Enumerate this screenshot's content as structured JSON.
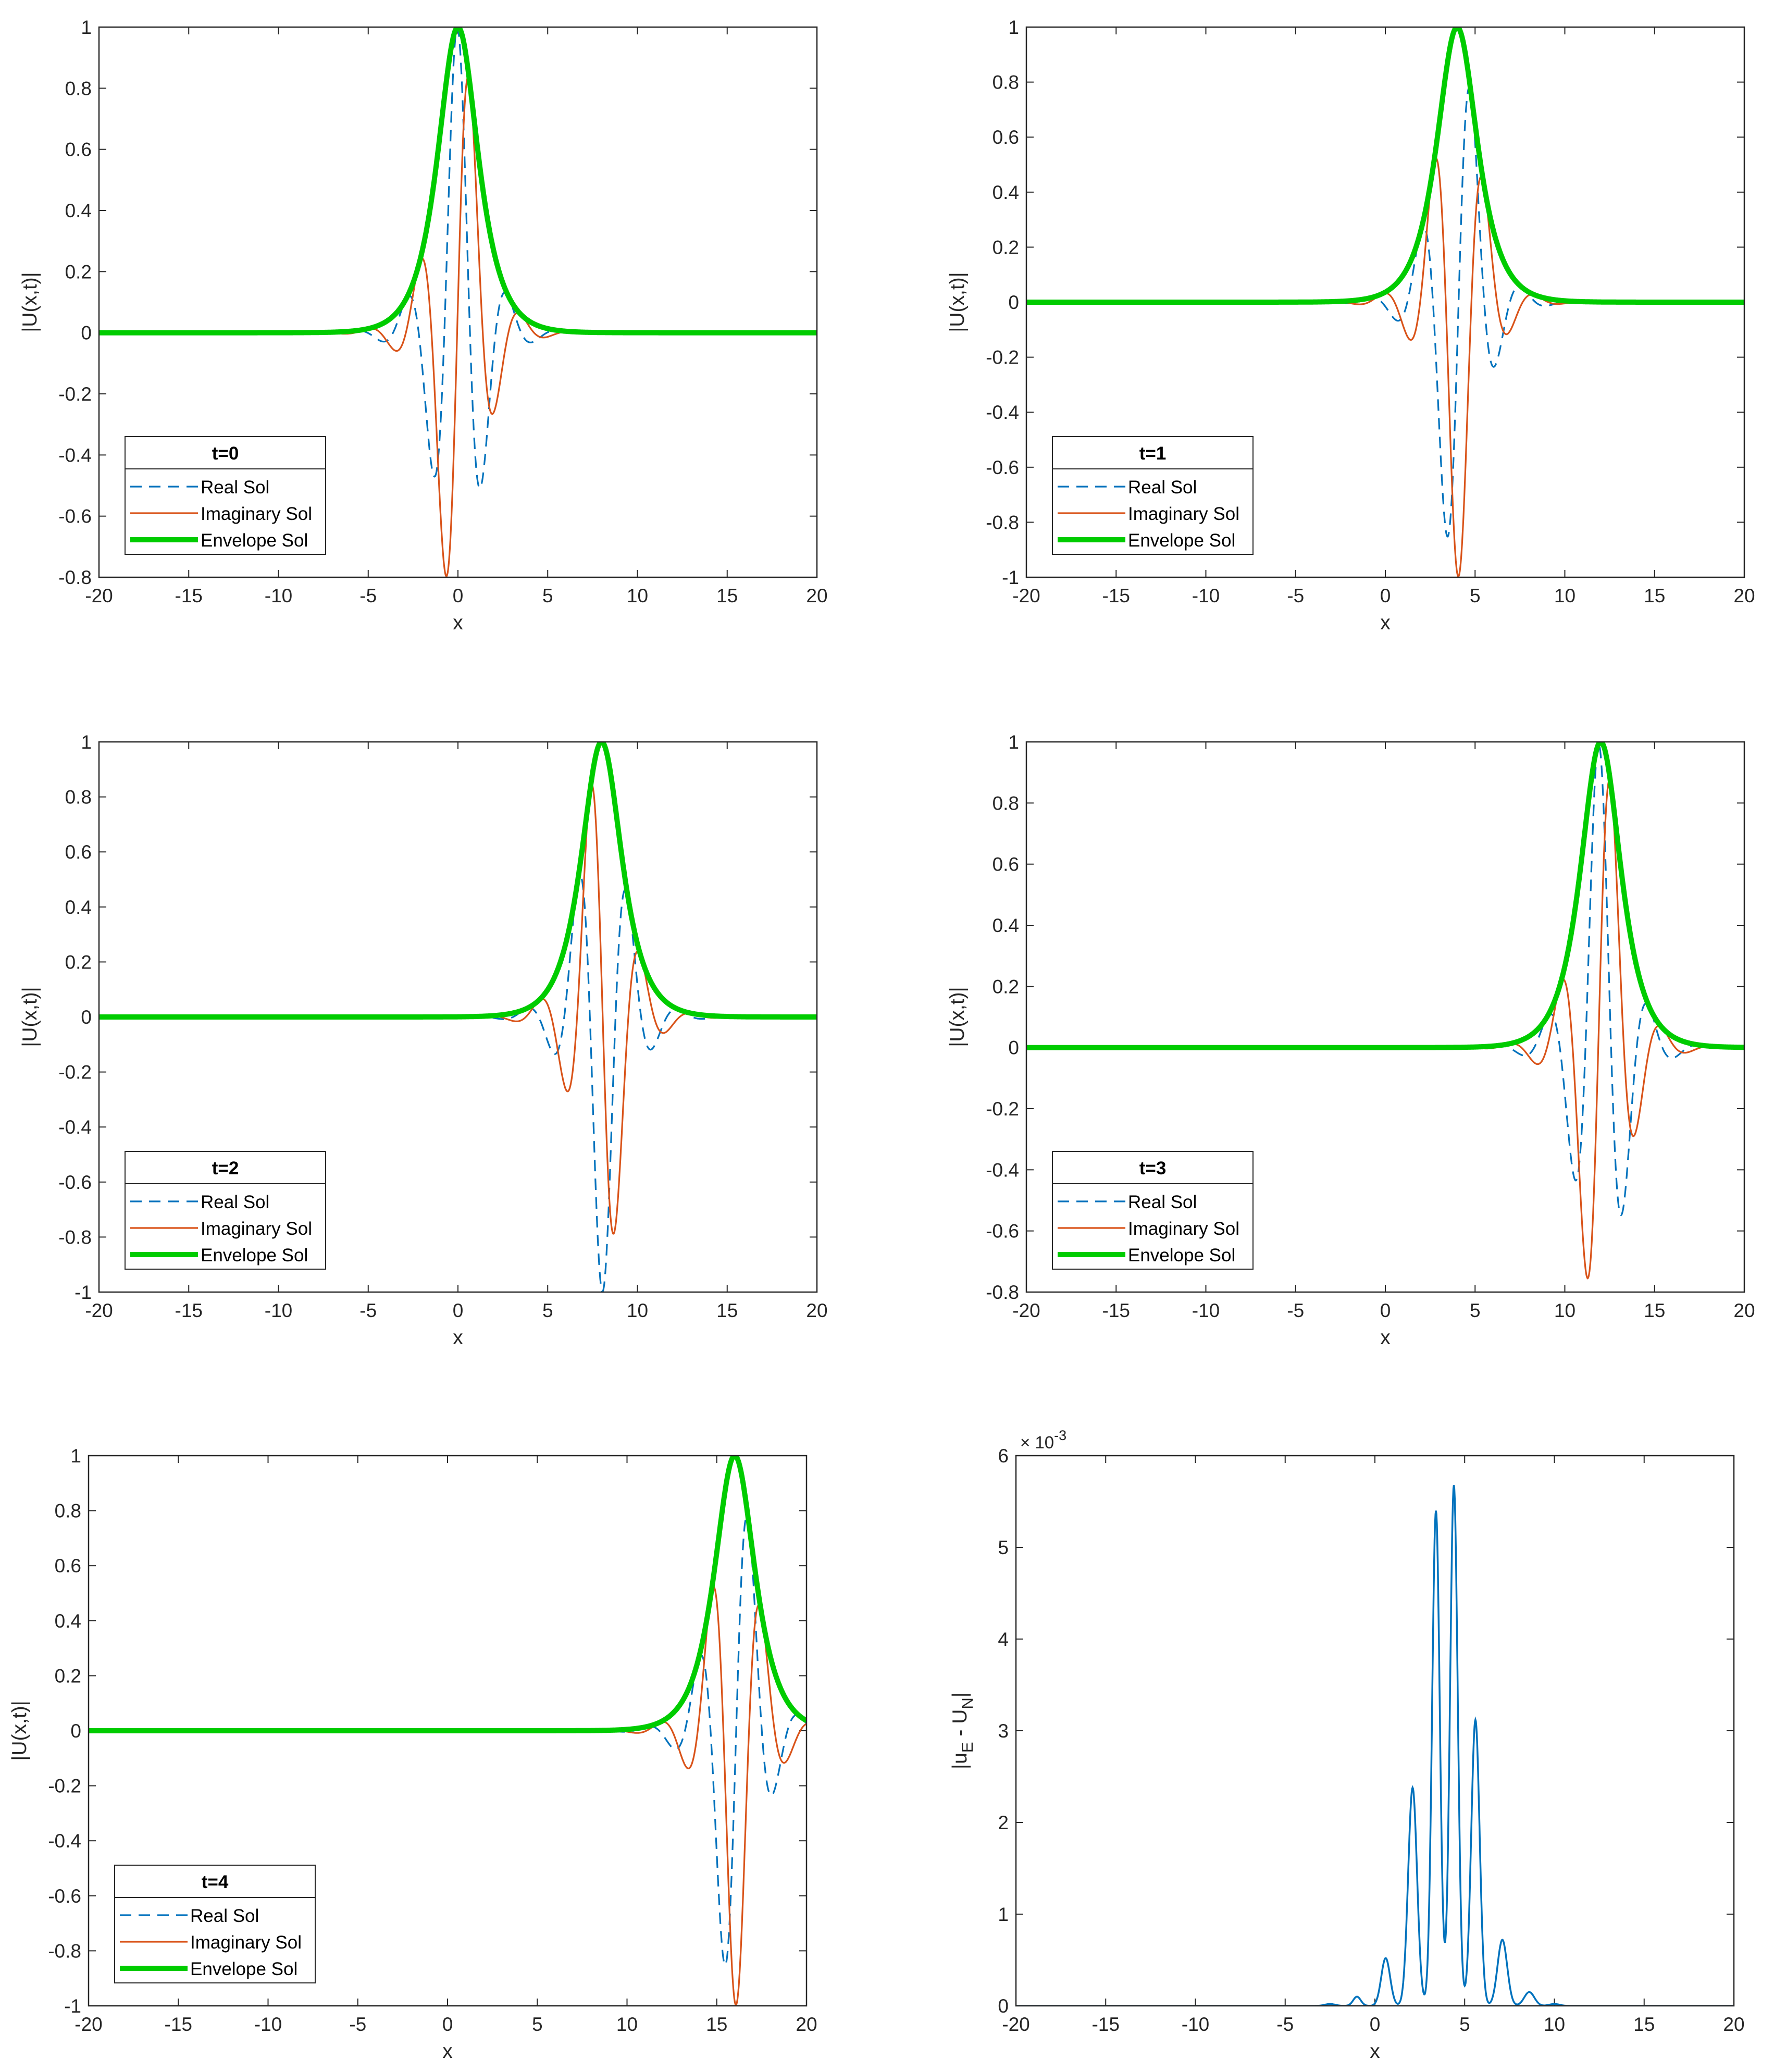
{
  "figure": {
    "description_free": true
  },
  "colors": {
    "real": "#0072BD",
    "imaginary": "#D95319",
    "envelope": "#00CC00",
    "error": "#0072BD",
    "axis": "#262626"
  },
  "chart_data": [
    {
      "type": "line",
      "id": "t0",
      "xlabel": "x",
      "ylabel": "|U(x,t)|",
      "xlim": [
        -20,
        20
      ],
      "ylim": [
        -0.8,
        1
      ],
      "xticks": [
        -20,
        -15,
        -10,
        -5,
        0,
        5,
        10,
        15,
        20
      ],
      "yticks": [
        -0.8,
        -0.6,
        -0.4,
        -0.2,
        0,
        0.2,
        0.4,
        0.6,
        0.8,
        1
      ],
      "legend": {
        "title": "t=0",
        "placement": "bottom-left",
        "entries": [
          "Real Sol",
          "Imaginary Sol",
          "Envelope Sol"
        ]
      },
      "model": {
        "center": 0,
        "width": 1,
        "wavenumber": 2.2,
        "phase": 0.1
      },
      "series": [
        {
          "name": "Real Sol",
          "style": "dashed"
        },
        {
          "name": "Imaginary Sol",
          "style": "solid"
        },
        {
          "name": "Envelope Sol",
          "style": "thick"
        }
      ]
    },
    {
      "type": "line",
      "id": "t1",
      "xlabel": "x",
      "ylabel": "|U(x,t)|",
      "xlim": [
        -20,
        20
      ],
      "ylim": [
        -1,
        1
      ],
      "xticks": [
        -20,
        -15,
        -10,
        -5,
        0,
        5,
        10,
        15,
        20
      ],
      "yticks": [
        -1,
        -0.8,
        -0.6,
        -0.4,
        -0.2,
        0,
        0.2,
        0.4,
        0.6,
        0.8,
        1
      ],
      "legend": {
        "title": "t=1",
        "placement": "bottom-left",
        "entries": [
          "Real Sol",
          "Imaginary Sol",
          "Envelope Sol"
        ]
      },
      "model": {
        "center": 4,
        "width": 1,
        "wavenumber": 2.2,
        "phase": -1.75
      },
      "series": [
        {
          "name": "Real Sol",
          "style": "dashed"
        },
        {
          "name": "Imaginary Sol",
          "style": "solid"
        },
        {
          "name": "Envelope Sol",
          "style": "thick"
        }
      ]
    },
    {
      "type": "line",
      "id": "t2",
      "xlabel": "x",
      "ylabel": "|U(x,t)|",
      "xlim": [
        -20,
        20
      ],
      "ylim": [
        -1,
        1
      ],
      "xticks": [
        -20,
        -15,
        -10,
        -5,
        0,
        5,
        10,
        15,
        20
      ],
      "yticks": [
        -1,
        -0.8,
        -0.6,
        -0.4,
        -0.2,
        0,
        0.2,
        0.4,
        0.6,
        0.8,
        1
      ],
      "legend": {
        "title": "t=2",
        "placement": "bottom-left",
        "entries": [
          "Real Sol",
          "Imaginary Sol",
          "Envelope Sol"
        ]
      },
      "model": {
        "center": 8,
        "width": 1,
        "wavenumber": 2.2,
        "phase": 3.0
      },
      "series": [
        {
          "name": "Real Sol",
          "style": "dashed"
        },
        {
          "name": "Imaginary Sol",
          "style": "solid"
        },
        {
          "name": "Envelope Sol",
          "style": "thick"
        }
      ]
    },
    {
      "type": "line",
      "id": "t3",
      "xlabel": "x",
      "ylabel": "|U(x,t)|",
      "xlim": [
        -20,
        20
      ],
      "ylim": [
        -0.8,
        1
      ],
      "xticks": [
        -20,
        -15,
        -10,
        -5,
        0,
        5,
        10,
        15,
        20
      ],
      "yticks": [
        -0.8,
        -0.6,
        -0.4,
        -0.2,
        0,
        0.2,
        0.4,
        0.6,
        0.8,
        1
      ],
      "legend": {
        "title": "t=3",
        "placement": "bottom-left",
        "entries": [
          "Real Sol",
          "Imaginary Sol",
          "Envelope Sol"
        ]
      },
      "model": {
        "center": 12,
        "width": 1,
        "wavenumber": 2.2,
        "phase": 0.3
      },
      "series": [
        {
          "name": "Real Sol",
          "style": "dashed"
        },
        {
          "name": "Imaginary Sol",
          "style": "solid"
        },
        {
          "name": "Envelope Sol",
          "style": "thick"
        }
      ]
    },
    {
      "type": "line",
      "id": "t4",
      "xlabel": "x",
      "ylabel": "|U(x,t)|",
      "xlim": [
        -20,
        20
      ],
      "ylim": [
        -1,
        1
      ],
      "xticks": [
        -20,
        -15,
        -10,
        -5,
        0,
        5,
        10,
        15,
        20
      ],
      "yticks": [
        -1,
        -0.8,
        -0.6,
        -0.4,
        -0.2,
        0,
        0.2,
        0.4,
        0.6,
        0.8,
        1
      ],
      "legend": {
        "title": "t=4",
        "placement": "bottom-left",
        "entries": [
          "Real Sol",
          "Imaginary Sol",
          "Envelope Sol"
        ]
      },
      "model": {
        "center": 16,
        "width": 1,
        "wavenumber": 2.2,
        "phase": -1.75
      },
      "series": [
        {
          "name": "Real Sol",
          "style": "dashed"
        },
        {
          "name": "Imaginary Sol",
          "style": "solid"
        },
        {
          "name": "Envelope Sol",
          "style": "thick"
        }
      ]
    },
    {
      "type": "line",
      "id": "error",
      "xlabel": "x",
      "ylabel_main": "|u",
      "ylabel_sub1": "E",
      "ylabel_mid": " - U",
      "ylabel_sub2": "N",
      "ylabel_end": "|",
      "exponent_label_base": "× 10",
      "exponent_label_power": "-3",
      "xlim": [
        -20,
        20
      ],
      "ylim": [
        0,
        6
      ],
      "xticks": [
        -20,
        -15,
        -10,
        -5,
        0,
        5,
        10,
        15,
        20
      ],
      "yticks": [
        0,
        1,
        2,
        3,
        4,
        5,
        6
      ],
      "peaks": [
        {
          "x": -1.0,
          "y": 0.1,
          "w": 0.3
        },
        {
          "x": 0.6,
          "y": 0.52,
          "w": 0.35
        },
        {
          "x": 2.1,
          "y": 2.38,
          "w": 0.35
        },
        {
          "x": 3.4,
          "y": 5.4,
          "w": 0.3
        },
        {
          "x": 4.4,
          "y": 5.68,
          "w": 0.3
        },
        {
          "x": 5.6,
          "y": 3.12,
          "w": 0.33
        },
        {
          "x": 7.1,
          "y": 0.72,
          "w": 0.38
        },
        {
          "x": 8.6,
          "y": 0.15,
          "w": 0.4
        },
        {
          "x": 10.0,
          "y": 0.02,
          "w": 0.4
        },
        {
          "x": -2.5,
          "y": 0.02,
          "w": 0.4
        }
      ]
    }
  ]
}
